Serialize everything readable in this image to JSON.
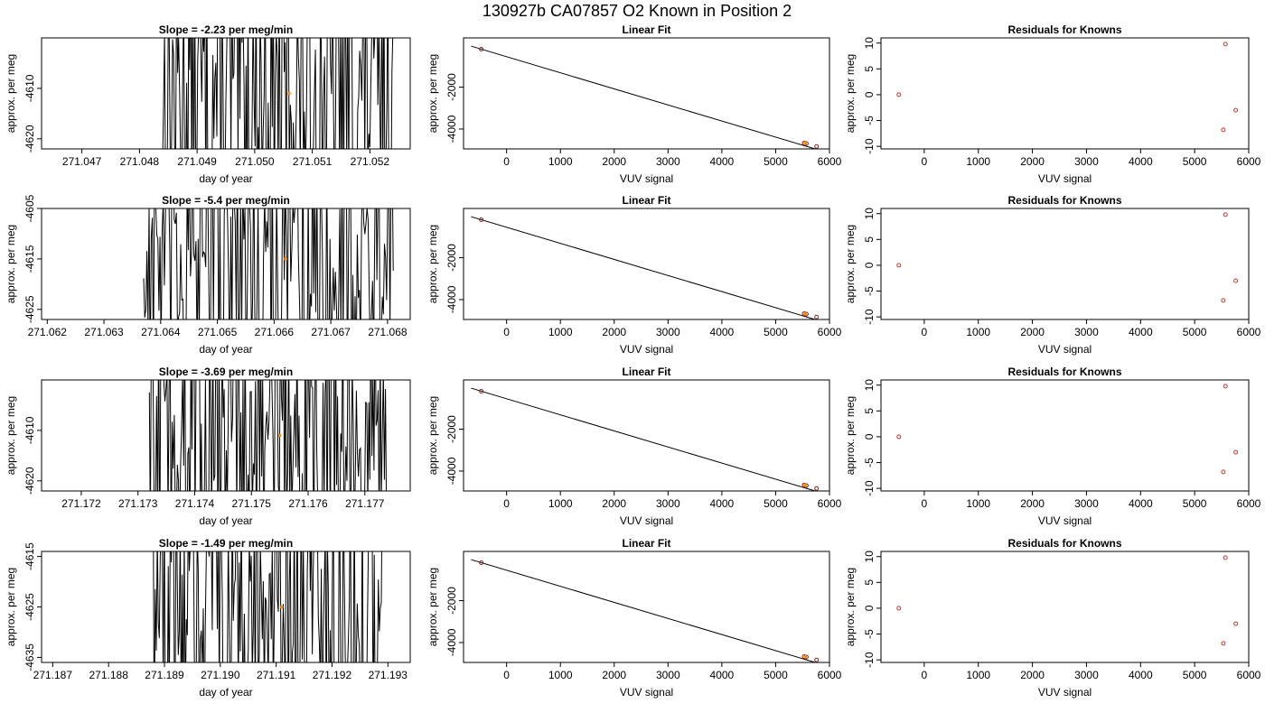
{
  "figure": {
    "title": "130927b     CA07857   O2 Known in Position  2"
  },
  "chart_data": [
    {
      "type": "line",
      "row": 1,
      "panel": "timeseries",
      "title": "Slope =  -2.23  per meg/min",
      "xlabel": "day of year",
      "ylabel": "approx. per meg",
      "xlim": [
        271.0463,
        271.0527
      ],
      "ylim": [
        -4622,
        -4600
      ],
      "xticks": [
        {
          "v": 271.047,
          "label": "271.047"
        },
        {
          "v": 271.048,
          "label": "271.048"
        },
        {
          "v": 271.049,
          "label": "271.049"
        },
        {
          "v": 271.05,
          "label": "271.050"
        },
        {
          "v": 271.051,
          "label": "271.051"
        },
        {
          "v": 271.052,
          "label": "271.052"
        }
      ],
      "yticks": [
        {
          "v": -4610,
          "label": "-4610"
        },
        {
          "v": -4620,
          "label": "-4620"
        }
      ],
      "x_start": 271.0484,
      "x_end": 271.0524,
      "marker": {
        "x": 271.0506,
        "y": -4611
      }
    },
    {
      "type": "line",
      "row": 1,
      "panel": "fit",
      "title": "Linear Fit",
      "xlabel": "VUV signal",
      "ylabel": "approx. per meg",
      "xlim": [
        -800,
        6000
      ],
      "ylim": [
        -4950,
        350
      ],
      "xticks": [
        {
          "v": 0,
          "label": "0"
        },
        {
          "v": 1000,
          "label": "1000"
        },
        {
          "v": 2000,
          "label": "2000"
        },
        {
          "v": 3000,
          "label": "3000"
        },
        {
          "v": 4000,
          "label": "4000"
        },
        {
          "v": 5000,
          "label": "5000"
        },
        {
          "v": 6000,
          "label": "6000"
        }
      ],
      "yticks": [
        {
          "v": -2000,
          "label": "-2000"
        },
        {
          "v": -4000,
          "label": "-4000"
        }
      ],
      "line": [
        [
          -660,
          -40
        ],
        [
          5760,
          -4970
        ]
      ],
      "points": [
        [
          -470,
          -190
        ],
        [
          5530,
          -4670
        ],
        [
          5570,
          -4690
        ],
        [
          5760,
          -4830
        ]
      ],
      "orange": [
        5550,
        -4680
      ]
    },
    {
      "type": "scatter",
      "row": 1,
      "panel": "residuals",
      "title": "Residuals for Knowns",
      "xlabel": "VUV signal",
      "ylabel": "approx. per meg",
      "xlim": [
        -800,
        6000
      ],
      "ylim": [
        -10.5,
        11
      ],
      "xticks": [
        {
          "v": 0,
          "label": "0"
        },
        {
          "v": 1000,
          "label": "1000"
        },
        {
          "v": 2000,
          "label": "2000"
        },
        {
          "v": 3000,
          "label": "3000"
        },
        {
          "v": 4000,
          "label": "4000"
        },
        {
          "v": 5000,
          "label": "5000"
        },
        {
          "v": 6000,
          "label": "6000"
        }
      ],
      "yticks": [
        {
          "v": 10,
          "label": "10"
        },
        {
          "v": 5,
          "label": "5"
        },
        {
          "v": 0,
          "label": "0"
        },
        {
          "v": -5,
          "label": "-5"
        },
        {
          "v": -10,
          "label": "-10"
        }
      ],
      "points": [
        [
          -470,
          0
        ],
        [
          5570,
          9.8
        ],
        [
          5760,
          -3
        ],
        [
          5530,
          -6.8
        ]
      ]
    },
    {
      "type": "line",
      "row": 2,
      "panel": "timeseries",
      "title": "Slope =  -5.4  per meg/min",
      "xlabel": "day of year",
      "ylabel": "approx. per meg",
      "xlim": [
        271.0619,
        271.0684
      ],
      "ylim": [
        -4627,
        -4605
      ],
      "xticks": [
        {
          "v": 271.062,
          "label": "271.062"
        },
        {
          "v": 271.063,
          "label": "271.063"
        },
        {
          "v": 271.064,
          "label": "271.064"
        },
        {
          "v": 271.065,
          "label": "271.065"
        },
        {
          "v": 271.066,
          "label": "271.066"
        },
        {
          "v": 271.067,
          "label": "271.067"
        },
        {
          "v": 271.068,
          "label": "271.068"
        }
      ],
      "yticks": [
        {
          "v": -4605,
          "label": "-4605"
        },
        {
          "v": -4615,
          "label": "-4615"
        },
        {
          "v": -4625,
          "label": "-4625"
        }
      ],
      "x_start": 271.0637,
      "x_end": 271.0681,
      "marker": {
        "x": 271.0662,
        "y": -4615
      }
    },
    {
      "type": "line",
      "row": 2,
      "panel": "fit",
      "title": "Linear Fit",
      "xlabel": "VUV signal",
      "ylabel": "approx. per meg",
      "xlim": [
        -800,
        6000
      ],
      "ylim": [
        -4950,
        350
      ],
      "xticks": [
        {
          "v": 0,
          "label": "0"
        },
        {
          "v": 1000,
          "label": "1000"
        },
        {
          "v": 2000,
          "label": "2000"
        },
        {
          "v": 3000,
          "label": "3000"
        },
        {
          "v": 4000,
          "label": "4000"
        },
        {
          "v": 5000,
          "label": "5000"
        },
        {
          "v": 6000,
          "label": "6000"
        }
      ],
      "yticks": [
        {
          "v": -2000,
          "label": "-2000"
        },
        {
          "v": -4000,
          "label": "-4000"
        }
      ],
      "line": [
        [
          -660,
          -40
        ],
        [
          5760,
          -4970
        ]
      ],
      "points": [
        [
          -470,
          -190
        ],
        [
          5530,
          -4670
        ],
        [
          5570,
          -4690
        ],
        [
          5760,
          -4830
        ]
      ],
      "orange": [
        5550,
        -4680
      ]
    },
    {
      "type": "scatter",
      "row": 2,
      "panel": "residuals",
      "title": "Residuals for Knowns",
      "xlabel": "VUV signal",
      "ylabel": "approx. per meg",
      "xlim": [
        -800,
        6000
      ],
      "ylim": [
        -10.5,
        11
      ],
      "xticks": [
        {
          "v": 0,
          "label": "0"
        },
        {
          "v": 1000,
          "label": "1000"
        },
        {
          "v": 2000,
          "label": "2000"
        },
        {
          "v": 3000,
          "label": "3000"
        },
        {
          "v": 4000,
          "label": "4000"
        },
        {
          "v": 5000,
          "label": "5000"
        },
        {
          "v": 6000,
          "label": "6000"
        }
      ],
      "yticks": [
        {
          "v": 10,
          "label": "10"
        },
        {
          "v": 5,
          "label": "5"
        },
        {
          "v": 0,
          "label": "0"
        },
        {
          "v": -5,
          "label": "-5"
        },
        {
          "v": -10,
          "label": "-10"
        }
      ],
      "points": [
        [
          -470,
          0
        ],
        [
          5570,
          9.8
        ],
        [
          5760,
          -3
        ],
        [
          5530,
          -6.8
        ]
      ]
    },
    {
      "type": "line",
      "row": 3,
      "panel": "timeseries",
      "title": "Slope =  -3.69  per meg/min",
      "xlabel": "day of year",
      "ylabel": "approx. per meg",
      "xlim": [
        271.1713,
        271.1778
      ],
      "ylim": [
        -4622,
        -4600
      ],
      "xticks": [
        {
          "v": 271.172,
          "label": "271.172"
        },
        {
          "v": 271.173,
          "label": "271.173"
        },
        {
          "v": 271.174,
          "label": "271.174"
        },
        {
          "v": 271.175,
          "label": "271.175"
        },
        {
          "v": 271.176,
          "label": "271.176"
        },
        {
          "v": 271.177,
          "label": "271.177"
        }
      ],
      "yticks": [
        {
          "v": -4610,
          "label": "-4610"
        },
        {
          "v": -4620,
          "label": "-4620"
        }
      ],
      "x_start": 271.1732,
      "x_end": 271.1774,
      "marker": {
        "x": 271.1755,
        "y": -4611
      }
    },
    {
      "type": "line",
      "row": 3,
      "panel": "fit",
      "title": "Linear Fit",
      "xlabel": "VUV signal",
      "ylabel": "approx. per meg",
      "xlim": [
        -800,
        6000
      ],
      "ylim": [
        -4950,
        350
      ],
      "xticks": [
        {
          "v": 0,
          "label": "0"
        },
        {
          "v": 1000,
          "label": "1000"
        },
        {
          "v": 2000,
          "label": "2000"
        },
        {
          "v": 3000,
          "label": "3000"
        },
        {
          "v": 4000,
          "label": "4000"
        },
        {
          "v": 5000,
          "label": "5000"
        },
        {
          "v": 6000,
          "label": "6000"
        }
      ],
      "yticks": [
        {
          "v": -2000,
          "label": "-2000"
        },
        {
          "v": -4000,
          "label": "-4000"
        }
      ],
      "line": [
        [
          -660,
          -40
        ],
        [
          5760,
          -4970
        ]
      ],
      "points": [
        [
          -470,
          -190
        ],
        [
          5530,
          -4670
        ],
        [
          5570,
          -4690
        ],
        [
          5760,
          -4830
        ]
      ],
      "orange": [
        5550,
        -4680
      ]
    },
    {
      "type": "scatter",
      "row": 3,
      "panel": "residuals",
      "title": "Residuals for Knowns",
      "xlabel": "VUV signal",
      "ylabel": "approx. per meg",
      "xlim": [
        -800,
        6000
      ],
      "ylim": [
        -10.5,
        11
      ],
      "xticks": [
        {
          "v": 0,
          "label": "0"
        },
        {
          "v": 1000,
          "label": "1000"
        },
        {
          "v": 2000,
          "label": "2000"
        },
        {
          "v": 3000,
          "label": "3000"
        },
        {
          "v": 4000,
          "label": "4000"
        },
        {
          "v": 5000,
          "label": "5000"
        },
        {
          "v": 6000,
          "label": "6000"
        }
      ],
      "yticks": [
        {
          "v": 10,
          "label": "10"
        },
        {
          "v": 5,
          "label": "5"
        },
        {
          "v": 0,
          "label": "0"
        },
        {
          "v": -5,
          "label": "-5"
        },
        {
          "v": -10,
          "label": "-10"
        }
      ],
      "points": [
        [
          -470,
          0
        ],
        [
          5570,
          9.8
        ],
        [
          5760,
          -3
        ],
        [
          5530,
          -6.8
        ]
      ]
    },
    {
      "type": "line",
      "row": 4,
      "panel": "timeseries",
      "title": "Slope =  -1.49  per meg/min",
      "xlabel": "day of year",
      "ylabel": "approx. per meg",
      "xlim": [
        271.1868,
        271.1934
      ],
      "ylim": [
        -4636,
        -4614
      ],
      "xticks": [
        {
          "v": 271.187,
          "label": "271.187"
        },
        {
          "v": 271.188,
          "label": "271.188"
        },
        {
          "v": 271.189,
          "label": "271.189"
        },
        {
          "v": 271.19,
          "label": "271.190"
        },
        {
          "v": 271.191,
          "label": "271.191"
        },
        {
          "v": 271.192,
          "label": "271.192"
        },
        {
          "v": 271.193,
          "label": "271.193"
        }
      ],
      "yticks": [
        {
          "v": -4615,
          "label": "-4615"
        },
        {
          "v": -4625,
          "label": "-4625"
        },
        {
          "v": -4635,
          "label": "-4635"
        }
      ],
      "x_start": 271.1888,
      "x_end": 271.1929,
      "marker": {
        "x": 271.1911,
        "y": -4625
      }
    },
    {
      "type": "line",
      "row": 4,
      "panel": "fit",
      "title": "Linear Fit",
      "xlabel": "VUV signal",
      "ylabel": "approx. per meg",
      "xlim": [
        -800,
        6000
      ],
      "ylim": [
        -4950,
        350
      ],
      "xticks": [
        {
          "v": 0,
          "label": "0"
        },
        {
          "v": 1000,
          "label": "1000"
        },
        {
          "v": 2000,
          "label": "2000"
        },
        {
          "v": 3000,
          "label": "3000"
        },
        {
          "v": 4000,
          "label": "4000"
        },
        {
          "v": 5000,
          "label": "5000"
        },
        {
          "v": 6000,
          "label": "6000"
        }
      ],
      "yticks": [
        {
          "v": -2000,
          "label": "-2000"
        },
        {
          "v": -4000,
          "label": "-4000"
        }
      ],
      "line": [
        [
          -660,
          -40
        ],
        [
          5760,
          -4970
        ]
      ],
      "points": [
        [
          -470,
          -190
        ],
        [
          5530,
          -4670
        ],
        [
          5570,
          -4690
        ],
        [
          5760,
          -4830
        ]
      ],
      "orange": [
        5550,
        -4680
      ]
    },
    {
      "type": "scatter",
      "row": 4,
      "panel": "residuals",
      "title": "Residuals for Knowns",
      "xlabel": "VUV signal",
      "ylabel": "approx. per meg",
      "xlim": [
        -800,
        6000
      ],
      "ylim": [
        -10.5,
        11
      ],
      "xticks": [
        {
          "v": 0,
          "label": "0"
        },
        {
          "v": 1000,
          "label": "1000"
        },
        {
          "v": 2000,
          "label": "2000"
        },
        {
          "v": 3000,
          "label": "3000"
        },
        {
          "v": 4000,
          "label": "4000"
        },
        {
          "v": 5000,
          "label": "5000"
        },
        {
          "v": 6000,
          "label": "6000"
        }
      ],
      "yticks": [
        {
          "v": 10,
          "label": "10"
        },
        {
          "v": 5,
          "label": "5"
        },
        {
          "v": 0,
          "label": "0"
        },
        {
          "v": -5,
          "label": "-5"
        },
        {
          "v": -10,
          "label": "-10"
        }
      ],
      "points": [
        [
          -470,
          0
        ],
        [
          5570,
          9.8
        ],
        [
          5760,
          -3
        ],
        [
          5530,
          -6.8
        ]
      ]
    }
  ],
  "colors": {
    "line": "#000000",
    "points_fit": "#8b1a1a",
    "residual_points": "#c0392b",
    "marker": "#ff8c00"
  }
}
